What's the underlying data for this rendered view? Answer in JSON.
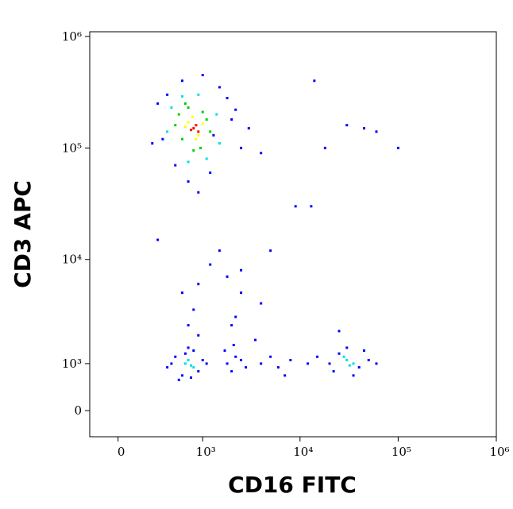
{
  "chart_data": {
    "type": "scatter",
    "x_label": "CD16 FITC",
    "y_label": "CD3 APC",
    "scale": "biexponential",
    "xlim": [
      -200,
      1000000
    ],
    "ylim": [
      -500,
      1100000
    ],
    "xticks": [
      0,
      {
        "value": 1000,
        "label": "10³"
      },
      {
        "value": 10000,
        "label": "10⁴"
      },
      {
        "value": 100000,
        "label": "10⁵"
      },
      {
        "value": 1000000,
        "label": "10⁶"
      }
    ],
    "yticks": [
      0,
      {
        "value": 1000,
        "label": "10³"
      },
      {
        "value": 10000,
        "label": "10⁴"
      },
      {
        "value": 100000,
        "label": "10⁵"
      },
      {
        "value": 1000000,
        "label": "10⁶"
      }
    ],
    "series": [
      {
        "color": "#0000ff",
        "x": [
          300,
          350,
          2000,
          2500,
          1800,
          500,
          1200,
          700,
          900,
          400,
          1500,
          3000,
          250,
          600,
          1000,
          2200,
          4000,
          1300,
          14000,
          30000,
          45000,
          60000,
          18000,
          100000,
          9000,
          13000,
          300,
          1500,
          1800,
          2500,
          600,
          900,
          1200,
          5000,
          4000,
          400,
          500,
          600,
          800,
          1000,
          900,
          550,
          700,
          1100,
          450,
          750,
          650,
          1800,
          2200,
          2000,
          2500,
          1700,
          2800,
          2100,
          4000,
          5000,
          6000,
          8000,
          12000,
          3500,
          7000,
          20000,
          25000,
          40000,
          50000,
          22000,
          45000,
          60000,
          15000,
          35000,
          30000,
          700,
          800,
          900,
          2000,
          2200,
          25000,
          2500
        ],
        "y": [
          250000,
          120000,
          180000,
          100000,
          280000,
          70000,
          60000,
          50000,
          40000,
          300000,
          350000,
          150000,
          110000,
          400000,
          450000,
          220000,
          90000,
          130000,
          400000,
          160000,
          150000,
          140000,
          100000,
          100000,
          30000,
          30000,
          15000,
          12000,
          7000,
          8000,
          5000,
          6000,
          9000,
          12000,
          4000,
          900,
          1200,
          700,
          1400,
          1100,
          800,
          600,
          1500,
          1000,
          1000,
          650,
          1300,
          1000,
          1200,
          800,
          1100,
          1400,
          900,
          1600,
          1000,
          1200,
          900,
          1100,
          1000,
          1800,
          700,
          1000,
          1300,
          900,
          1100,
          800,
          1400,
          1000,
          1200,
          700,
          1500,
          2500,
          3500,
          2000,
          2500,
          3000,
          2200,
          5000
        ]
      },
      {
        "color": "#00e0e0",
        "x": [
          450,
          1400,
          400,
          1500,
          600,
          1100,
          700,
          900,
          650,
          750,
          700,
          800,
          30000,
          35000,
          28000,
          32000
        ],
        "y": [
          230000,
          200000,
          140000,
          110000,
          290000,
          80000,
          75000,
          300000,
          1000,
          950,
          1100,
          900,
          1100,
          1000,
          1200,
          950
        ]
      },
      {
        "color": "#00d000",
        "x": [
          550,
          1100,
          600,
          1200,
          700,
          950,
          500,
          1000,
          800,
          650
        ],
        "y": [
          200000,
          180000,
          120000,
          140000,
          230000,
          100000,
          160000,
          210000,
          95000,
          250000
        ]
      },
      {
        "color": "#ffff00",
        "x": [
          700,
          900,
          650,
          1000,
          780,
          850
        ],
        "y": [
          170000,
          130000,
          155000,
          165000,
          190000,
          120000
        ]
      },
      {
        "color": "#ff0000",
        "x": [
          800,
          850,
          750,
          900
        ],
        "y": [
          150000,
          160000,
          145000,
          140000
        ]
      }
    ]
  }
}
